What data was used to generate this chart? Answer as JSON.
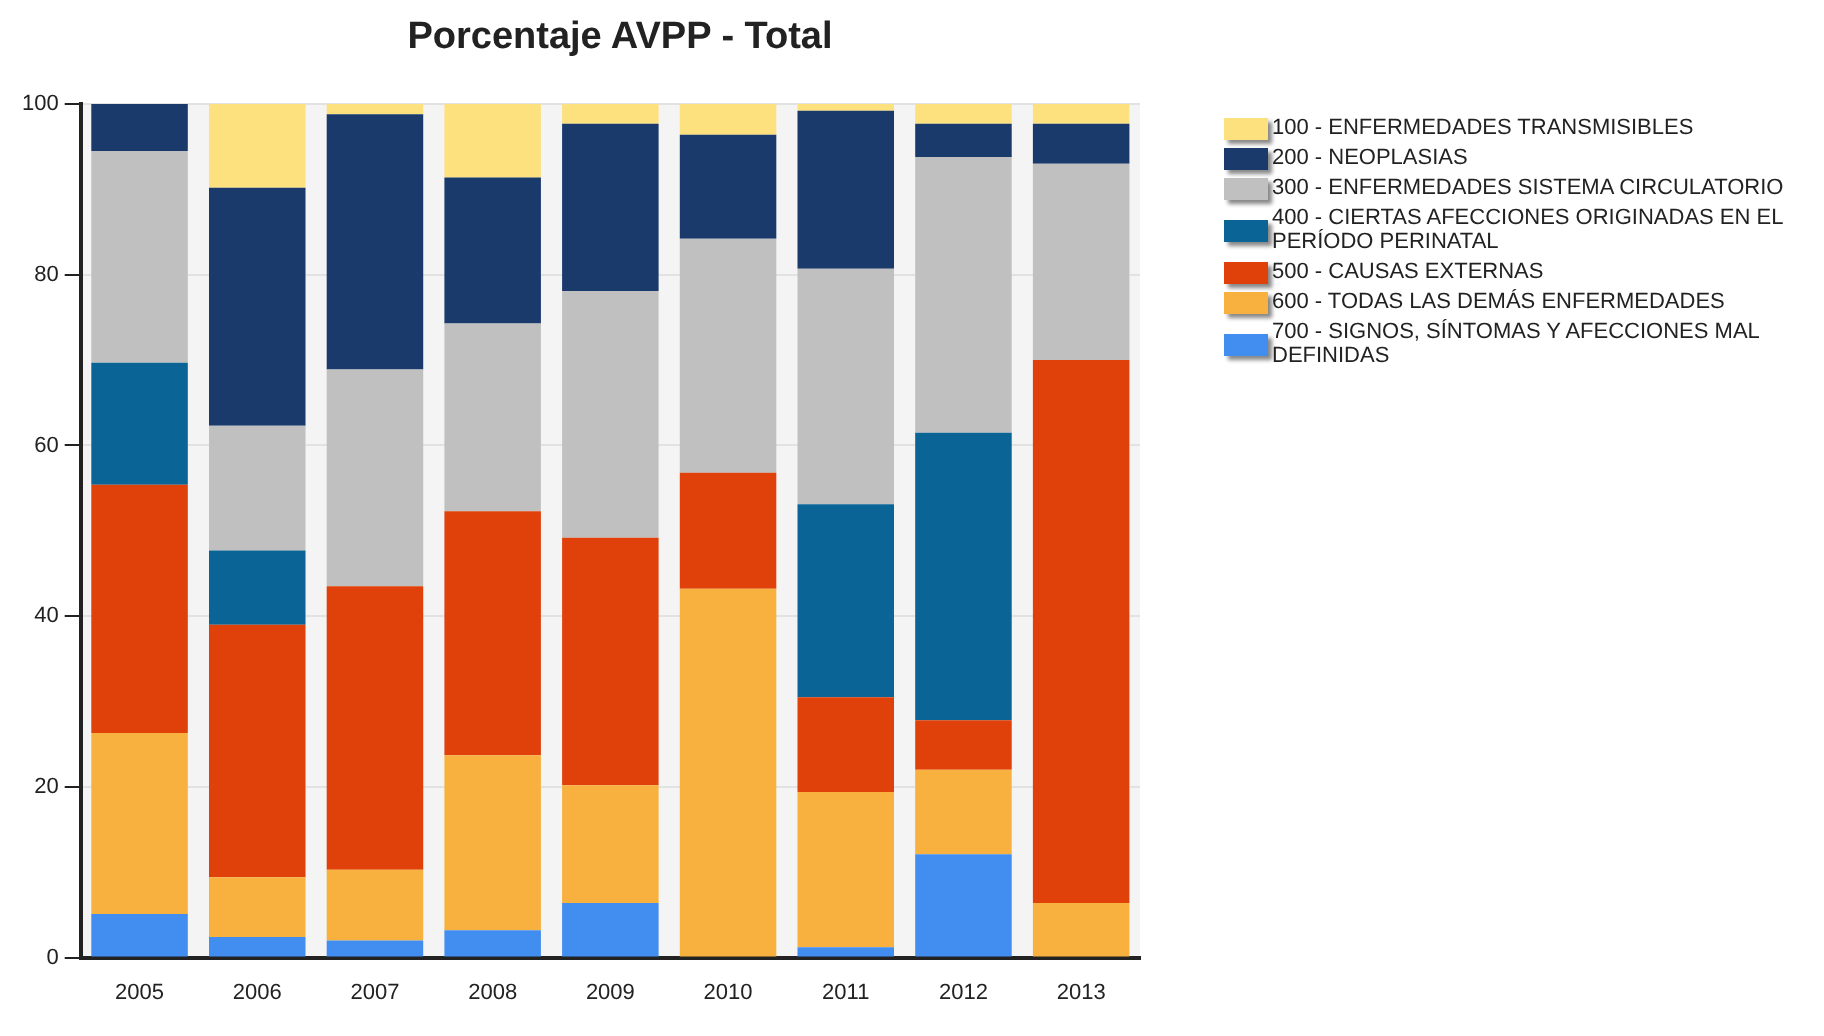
{
  "chart_data": {
    "type": "bar",
    "title": "Porcentaje AVPP - Total",
    "stacked": true,
    "legend": "right",
    "grid": "y",
    "categories": [
      "2005",
      "2006",
      "2007",
      "2008",
      "2009",
      "2010",
      "2011",
      "2012",
      "2013"
    ],
    "ylim": [
      0,
      100
    ],
    "yticks": [
      0,
      20,
      40,
      60,
      80,
      100
    ],
    "series": [
      {
        "name": "700 - SIGNOS, SÍNTOMAS Y AFECCIONES MAL DEFINIDAS",
        "color": "#428df0",
        "values": [
          5.1,
          2.4,
          2.0,
          3.2,
          6.4,
          0,
          1.2,
          12.1,
          0
        ]
      },
      {
        "name": "600 - TODAS LAS DEMÁS ENFERMEDADES",
        "color": "#f8b13f",
        "values": [
          21.2,
          7.0,
          8.3,
          20.5,
          13.8,
          43.2,
          18.2,
          9.9,
          6.4
        ]
      },
      {
        "name": "500 - CAUSAS EXTERNAS",
        "color": "#e0400a",
        "values": [
          29.1,
          29.6,
          33.2,
          28.6,
          29.0,
          13.6,
          11.1,
          5.8,
          63.6
        ]
      },
      {
        "name": "400 - CIERTAS AFECCIONES ORIGINADAS EN EL PERÍODO PERINATAL",
        "color": "#0a6496",
        "values": [
          14.3,
          8.7,
          0,
          0,
          0,
          0,
          22.6,
          33.7,
          0
        ]
      },
      {
        "name": "300 - ENFERMEDADES SISTEMA CIRCULATORIO",
        "color": "#c0c0c0",
        "values": [
          24.8,
          14.6,
          25.4,
          22.0,
          28.9,
          27.4,
          27.6,
          32.3,
          23.0
        ]
      },
      {
        "name": "200 - NEOPLASIAS",
        "color": "#1a3a6b",
        "values": [
          5.5,
          27.9,
          29.9,
          17.1,
          19.6,
          12.2,
          18.5,
          3.9,
          4.7
        ]
      },
      {
        "name": "100 - ENFERMEDADES TRANSMISIBLES",
        "color": "#fde17e",
        "values": [
          0,
          9.8,
          1.2,
          8.6,
          2.3,
          3.6,
          0.8,
          2.3,
          2.3
        ]
      }
    ]
  }
}
